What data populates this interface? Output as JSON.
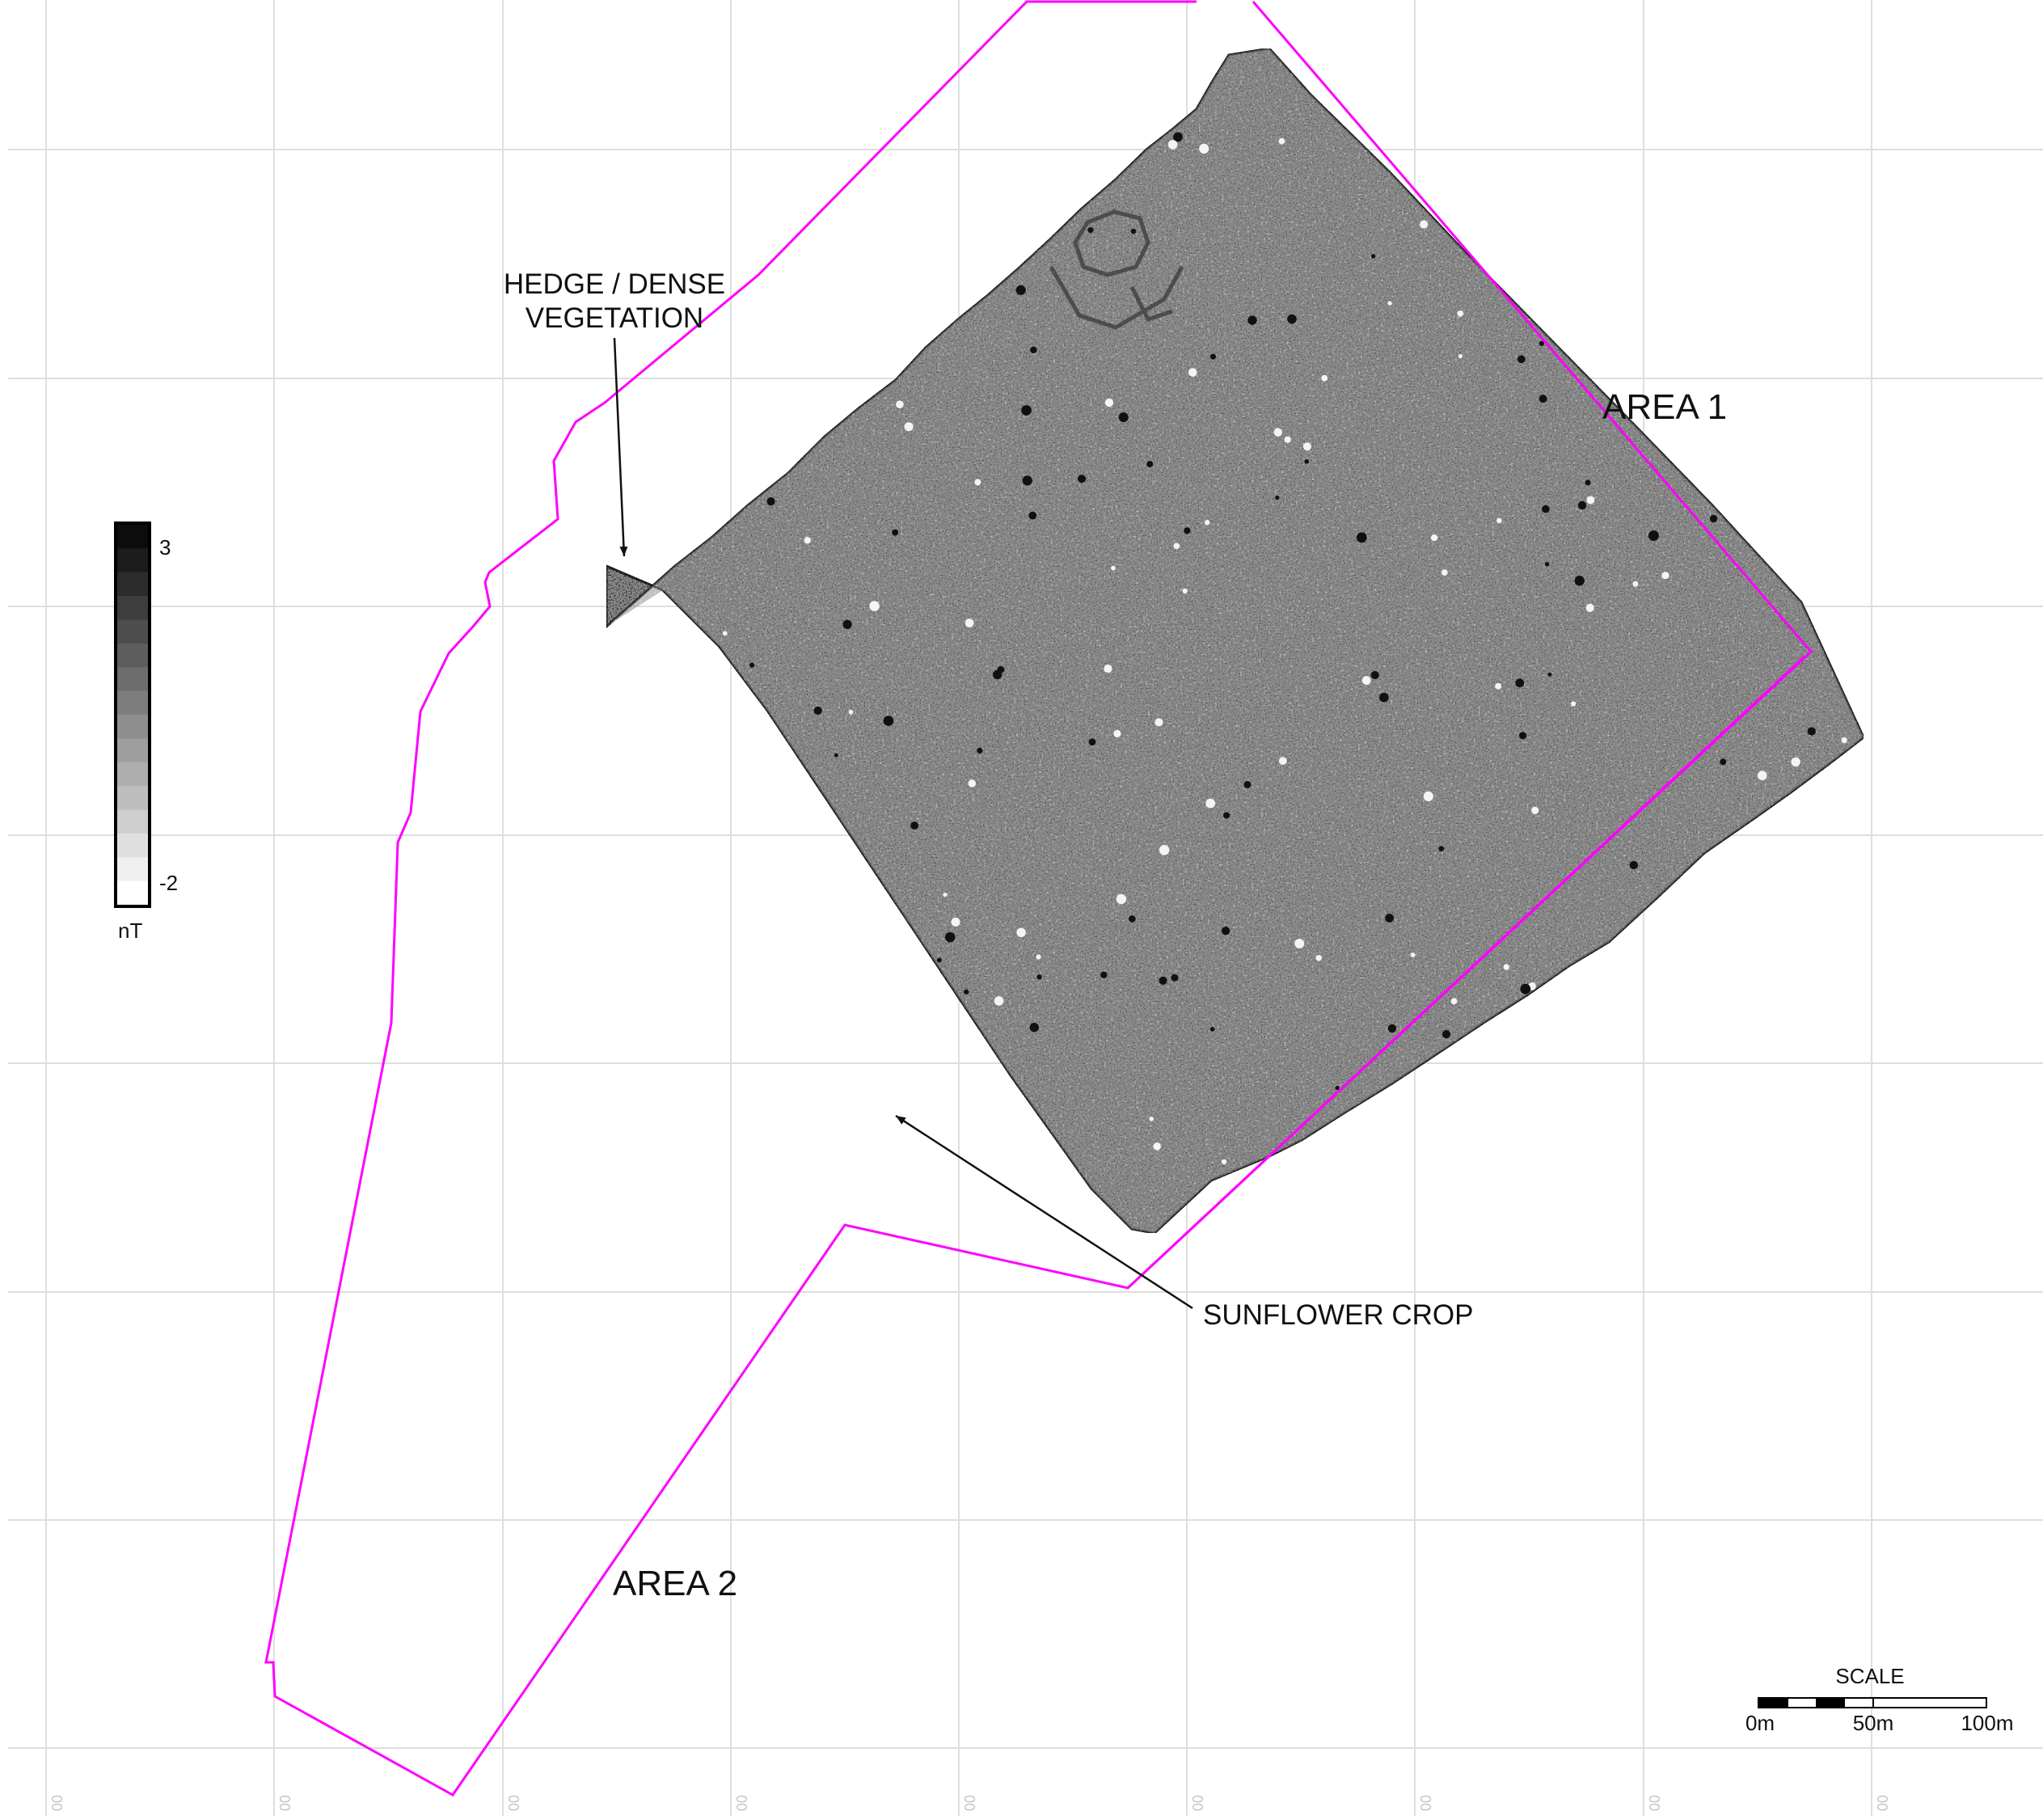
{
  "map": {
    "annotations": {
      "hedge_line1": "HEDGE / DENSE",
      "hedge_line2": "VEGETATION",
      "sunflower": "SUNFLOWER CROP",
      "area1": "AREA 1",
      "area2": "AREA 2"
    },
    "legend": {
      "max_label": "3",
      "min_label": "-2",
      "unit": "nT",
      "max_value": 3,
      "min_value": -2
    },
    "scale": {
      "title": "SCALE",
      "labels": [
        "0m",
        "50m",
        "100m"
      ]
    },
    "grid_coords": [
      "00",
      "00",
      "00",
      "00",
      "00",
      "00",
      "00",
      "00",
      "00"
    ],
    "colors": {
      "boundary": "#ff00ff",
      "grid": "#dedede",
      "survey_fill": "#8d8d8d",
      "survey_edge": "#2a2a2a"
    }
  }
}
